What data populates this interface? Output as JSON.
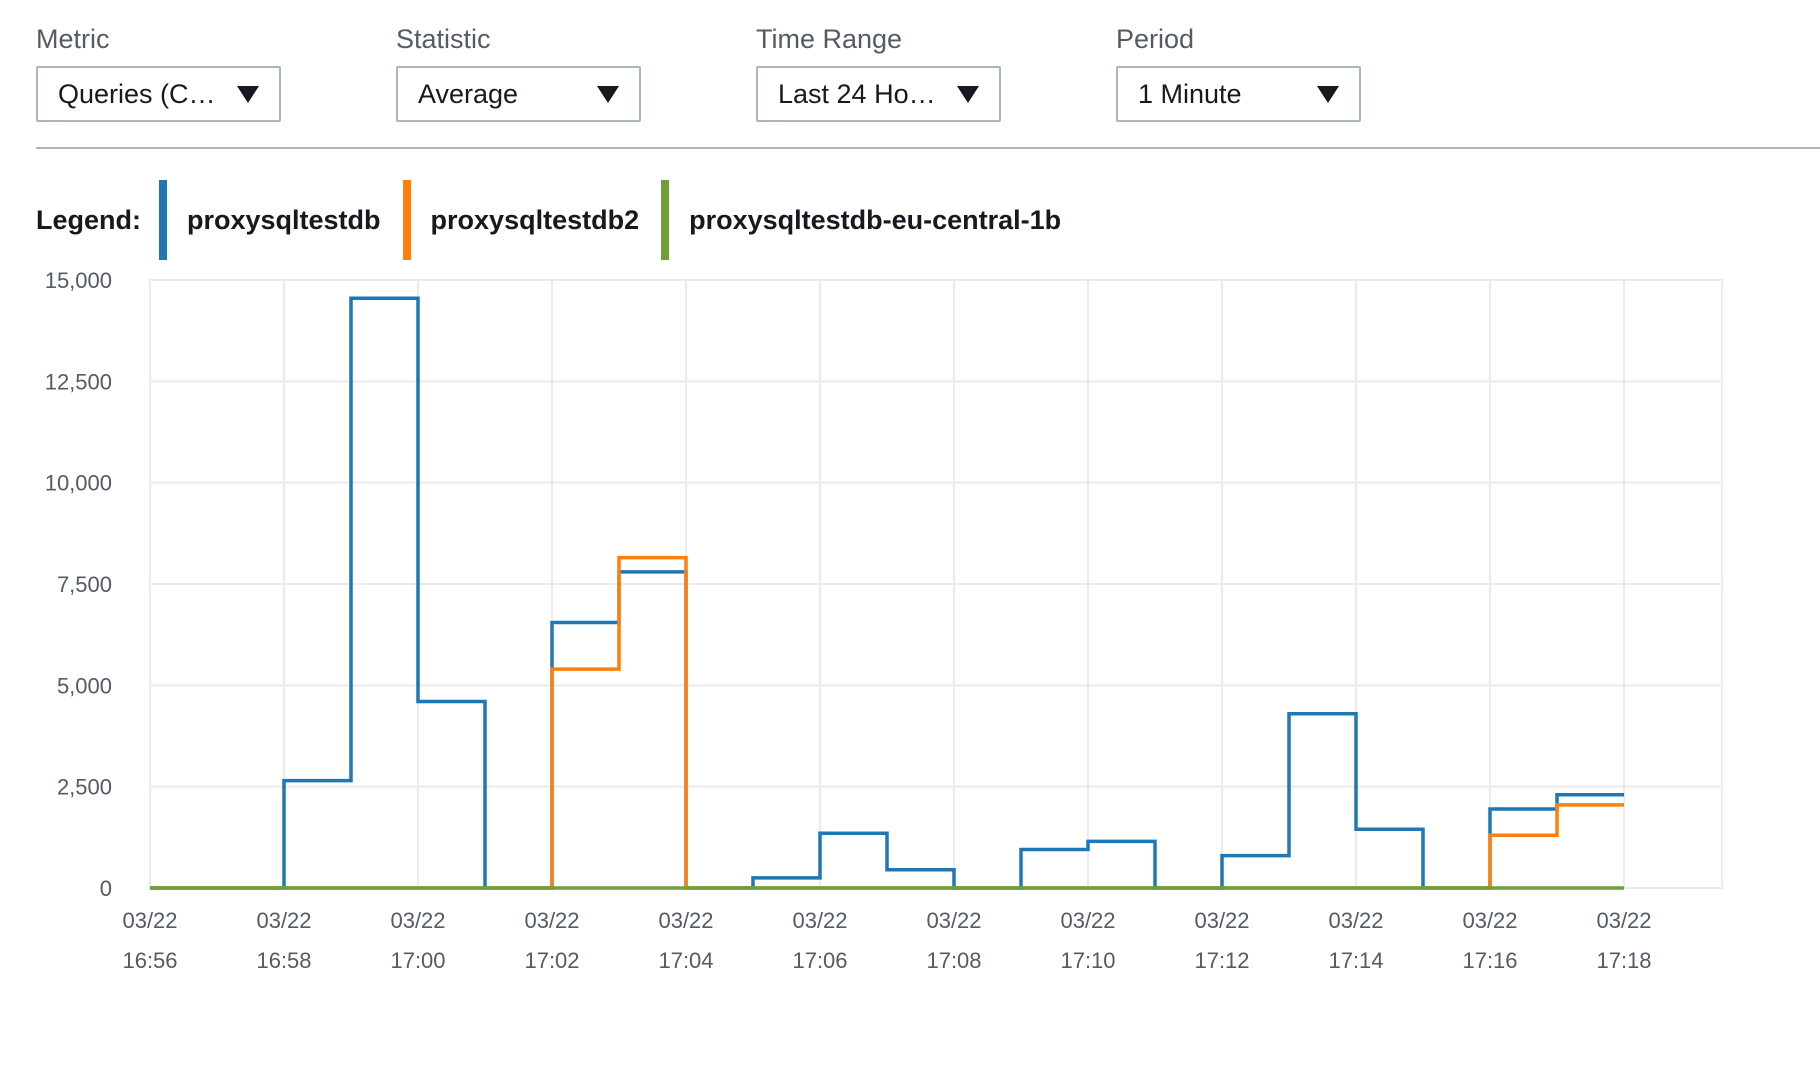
{
  "controls": {
    "metric": {
      "label": "Metric",
      "value": "Queries (C…"
    },
    "statistic": {
      "label": "Statistic",
      "value": "Average"
    },
    "time_range": {
      "label": "Time Range",
      "value": "Last 24 Ho…"
    },
    "period": {
      "label": "Period",
      "value": "1 Minute"
    }
  },
  "legend": {
    "title": "Legend:",
    "items": [
      {
        "label": "proxysqltestdb",
        "color": "#1f77b4"
      },
      {
        "label": "proxysqltestdb2",
        "color": "#ff7f0e"
      },
      {
        "label": "proxysqltestdb-eu-central-1b",
        "color": "#6f9e3a"
      }
    ]
  },
  "chart_data": {
    "type": "line",
    "step": true,
    "ylim": [
      0,
      15000
    ],
    "yticks": [
      0,
      2500,
      5000,
      7500,
      10000,
      12500,
      15000
    ],
    "ytick_labels": [
      "0",
      "2,500",
      "5,000",
      "7,500",
      "10,000",
      "12,500",
      "15,000"
    ],
    "x": [
      "16:56",
      "16:57",
      "16:58",
      "16:59",
      "17:00",
      "17:01",
      "17:02",
      "17:03",
      "17:04",
      "17:05",
      "17:06",
      "17:07",
      "17:08",
      "17:09",
      "17:10",
      "17:11",
      "17:12",
      "17:13",
      "17:14",
      "17:15",
      "17:16",
      "17:17",
      "17:18"
    ],
    "xticks": [
      {
        "date": "03/22",
        "time": "16:56"
      },
      {
        "date": "03/22",
        "time": "16:58"
      },
      {
        "date": "03/22",
        "time": "17:00"
      },
      {
        "date": "03/22",
        "time": "17:02"
      },
      {
        "date": "03/22",
        "time": "17:04"
      },
      {
        "date": "03/22",
        "time": "17:06"
      },
      {
        "date": "03/22",
        "time": "17:08"
      },
      {
        "date": "03/22",
        "time": "17:10"
      },
      {
        "date": "03/22",
        "time": "17:12"
      },
      {
        "date": "03/22",
        "time": "17:14"
      },
      {
        "date": "03/22",
        "time": "17:16"
      },
      {
        "date": "03/22",
        "time": "17:18"
      }
    ],
    "grid": true,
    "series": [
      {
        "name": "proxysqltestdb",
        "color": "#1f77b4",
        "values": [
          0,
          0,
          2650,
          14550,
          4600,
          0,
          6550,
          7800,
          0,
          250,
          1350,
          450,
          0,
          950,
          1150,
          0,
          800,
          4300,
          1450,
          0,
          1950,
          2300,
          2300
        ]
      },
      {
        "name": "proxysqltestdb2",
        "color": "#ff7f0e",
        "values": [
          0,
          0,
          0,
          0,
          0,
          0,
          5400,
          8150,
          0,
          0,
          0,
          0,
          0,
          0,
          0,
          0,
          0,
          0,
          0,
          0,
          1300,
          2050,
          2050
        ]
      },
      {
        "name": "proxysqltestdb-eu-central-1b",
        "color": "#6f9e3a",
        "values": [
          0,
          0,
          0,
          0,
          0,
          0,
          0,
          0,
          0,
          0,
          0,
          0,
          0,
          0,
          0,
          0,
          0,
          0,
          0,
          0,
          0,
          0,
          0
        ]
      }
    ]
  }
}
